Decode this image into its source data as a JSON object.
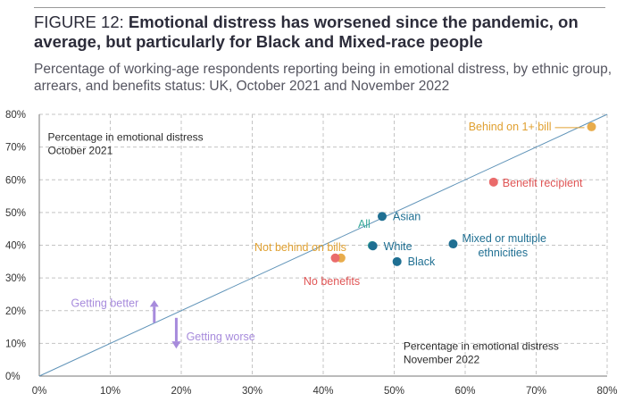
{
  "header": {
    "figure_label": "FIGURE 12:",
    "headline": "Emotional distress has worsened since the pandemic, on average, but particularly for Black and Mixed-race people",
    "subtitle": "Percentage of working-age respondents reporting being in emotional distress, by ethnic group, arrears, and benefits status: UK, October 2021 and November 2022"
  },
  "chart_data": {
    "type": "scatter",
    "xlabel": "Percentage in emotional distress November 2022",
    "ylabel": "Percentage in emotional distress October 2021",
    "xlim": [
      0,
      80
    ],
    "ylim": [
      0,
      80
    ],
    "x_ticks": [
      "0%",
      "10%",
      "20%",
      "30%",
      "40%",
      "50%",
      "60%",
      "70%",
      "80%"
    ],
    "y_ticks": [
      "0%",
      "10%",
      "20%",
      "30%",
      "40%",
      "50%",
      "60%",
      "70%",
      "80%"
    ],
    "grid": true,
    "reference_line": "y = x",
    "corner_notes": {
      "top_left": [
        "Percentage in emotional distress",
        "October 2021"
      ],
      "bottom_right": [
        "Percentage in emotional distress",
        "November 2022"
      ]
    },
    "legend_arrows": {
      "up": "Getting better",
      "down": "Getting worse",
      "color": "#a78bdc"
    },
    "points": [
      {
        "name": "Behind on 1+ bill",
        "label_lines": [
          "Behind on 1+ bill"
        ],
        "x": 77.8,
        "y": 76.2,
        "color": "#e8ac4c",
        "label_color": "#e0a030"
      },
      {
        "name": "Benefit recipient",
        "label_lines": [
          "Benefit recipient"
        ],
        "x": 64.0,
        "y": 59.3,
        "color": "#ea6b6b",
        "label_color": "#e05555"
      },
      {
        "name": "Asian",
        "label_lines": [
          "Asian"
        ],
        "x": 48.3,
        "y": 48.8,
        "color": "#1f6f92",
        "label_color": "#1f6f92"
      },
      {
        "name": "All",
        "label_lines": [
          "All"
        ],
        "x": 46.9,
        "y": 39.9,
        "color": "#3aaa9a",
        "label_color": "#3aaa9a"
      },
      {
        "name": "White",
        "label_lines": [
          "White"
        ],
        "x": 47.0,
        "y": 39.8,
        "color": "#1f6f92",
        "label_color": "#1f6f92"
      },
      {
        "name": "Mixed or multiple ethnicities",
        "label_lines": [
          "Mixed or multiple",
          "ethnicities"
        ],
        "x": 58.3,
        "y": 40.4,
        "color": "#1f6f92",
        "label_color": "#1f6f92"
      },
      {
        "name": "Black",
        "label_lines": [
          "Black"
        ],
        "x": 50.4,
        "y": 35.0,
        "color": "#1f6f92",
        "label_color": "#1f6f92"
      },
      {
        "name": "Not behind on bills",
        "label_lines": [
          "Not behind on bills"
        ],
        "x": 42.5,
        "y": 36.1,
        "color": "#e8ac4c",
        "label_color": "#e0a030"
      },
      {
        "name": "No benefits",
        "label_lines": [
          "No benefits"
        ],
        "x": 41.7,
        "y": 36.1,
        "color": "#ea6b6b",
        "label_color": "#e05555"
      }
    ],
    "colors": {
      "line": "#5f93b8",
      "grid": "#c4c4c4",
      "axis": "#777777"
    }
  }
}
